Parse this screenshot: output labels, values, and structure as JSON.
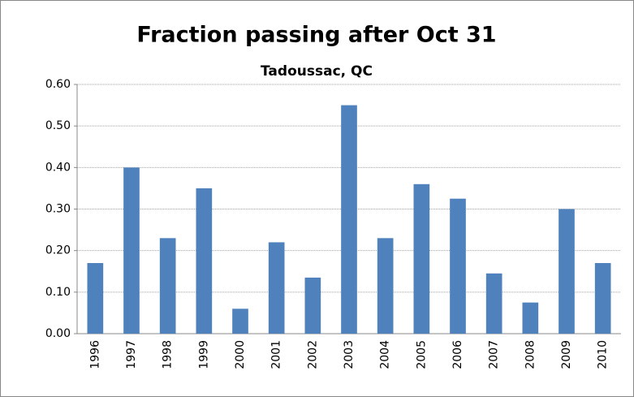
{
  "chart_data": {
    "type": "bar",
    "title": "Fraction passing after Oct 31",
    "subtitle": "Tadoussac, QC",
    "categories": [
      "1996",
      "1997",
      "1998",
      "1999",
      "2000",
      "2001",
      "2002",
      "2003",
      "2004",
      "2005",
      "2006",
      "2007",
      "2008",
      "2009",
      "2010"
    ],
    "values": [
      0.17,
      0.4,
      0.23,
      0.35,
      0.06,
      0.22,
      0.135,
      0.55,
      0.23,
      0.36,
      0.325,
      0.145,
      0.075,
      0.3,
      0.17
    ],
    "color": "#4f81bd",
    "ylim": [
      0,
      0.6
    ],
    "yticks": [
      {
        "value": 0,
        "label": "0.00"
      },
      {
        "value": 0.1,
        "label": "0.10"
      },
      {
        "value": 0.2,
        "label": "0.20"
      },
      {
        "value": 0.3,
        "label": "0.30"
      },
      {
        "value": 0.4,
        "label": "0.40"
      },
      {
        "value": 0.5,
        "label": "0.50"
      },
      {
        "value": 0.6,
        "label": "0.60"
      }
    ],
    "grid": true
  }
}
